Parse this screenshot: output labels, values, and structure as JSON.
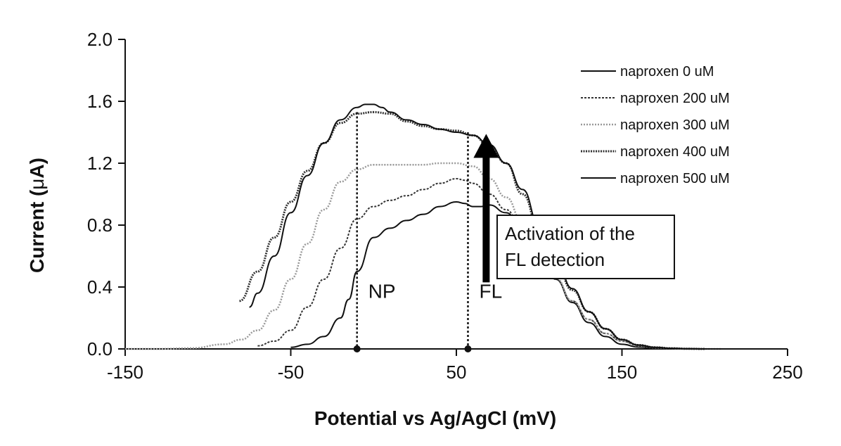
{
  "chart_data": {
    "type": "line",
    "title": "",
    "xlabel": "Potential vs Ag/AgCl (mV)",
    "ylabel_prefix": "Current (",
    "ylabel_mu": "μ",
    "ylabel_suffix": "A)",
    "xlim": [
      -150,
      250
    ],
    "ylim": [
      0,
      2.0
    ],
    "xticks": [
      -150,
      -50,
      50,
      150,
      250
    ],
    "xtick_labels": [
      "-150",
      "-50",
      "50",
      "150",
      "250"
    ],
    "yticks": [
      0,
      0.4,
      0.8,
      1.2,
      1.6,
      2.0
    ],
    "ytick_labels": [
      "0.0",
      "0.4",
      "0.8",
      "1.2",
      "1.6",
      "2.0"
    ],
    "grid": false,
    "legend_position": "top-right",
    "series": [
      {
        "name": "naproxen 0 uM",
        "style": "solid",
        "color": "#111111",
        "x": [
          -50,
          -40,
          -30,
          -20,
          -15,
          -10,
          0,
          10,
          20,
          30,
          40,
          50,
          55,
          60,
          65,
          70,
          80,
          90,
          100,
          110,
          120,
          130,
          140,
          150,
          160,
          170,
          180,
          190,
          200
        ],
        "y": [
          0.01,
          0.03,
          0.08,
          0.2,
          0.32,
          0.5,
          0.72,
          0.78,
          0.83,
          0.87,
          0.92,
          0.95,
          0.94,
          0.92,
          0.92,
          0.93,
          0.88,
          0.78,
          0.62,
          0.45,
          0.3,
          0.17,
          0.08,
          0.03,
          0.012,
          0.005,
          0.002,
          0.001,
          0.0
        ]
      },
      {
        "name": "naproxen 200 uM",
        "style": "dashed",
        "color": "#333333",
        "x": [
          -70,
          -60,
          -50,
          -40,
          -30,
          -20,
          -10,
          0,
          10,
          20,
          30,
          40,
          50,
          55,
          60,
          70,
          80,
          90,
          100,
          110,
          120,
          130,
          140,
          150,
          160,
          170,
          180,
          190,
          200
        ],
        "y": [
          0.02,
          0.05,
          0.12,
          0.27,
          0.45,
          0.65,
          0.84,
          0.92,
          0.96,
          0.99,
          1.03,
          1.07,
          1.1,
          1.09,
          1.07,
          1.0,
          0.9,
          0.77,
          0.61,
          0.45,
          0.31,
          0.19,
          0.1,
          0.05,
          0.02,
          0.008,
          0.003,
          0.001,
          0.0
        ]
      },
      {
        "name": "naproxen 300 uM",
        "style": "dotted-gray",
        "color": "#999999",
        "x": [
          -150,
          -130,
          -110,
          -90,
          -80,
          -70,
          -60,
          -50,
          -40,
          -30,
          -20,
          -10,
          0,
          10,
          20,
          30,
          40,
          50,
          60,
          70,
          80,
          90,
          100,
          110,
          120,
          130,
          140,
          150,
          160,
          170,
          180,
          190,
          200,
          210
        ],
        "y": [
          0.0,
          0.0,
          0.005,
          0.03,
          0.06,
          0.12,
          0.25,
          0.45,
          0.68,
          0.9,
          1.08,
          1.16,
          1.19,
          1.19,
          1.19,
          1.19,
          1.2,
          1.2,
          1.18,
          1.1,
          0.98,
          0.82,
          0.64,
          0.46,
          0.31,
          0.19,
          0.1,
          0.05,
          0.02,
          0.008,
          0.003,
          0.001,
          0.0,
          0.0
        ]
      },
      {
        "name": "naproxen 400 uM",
        "style": "dashed-double",
        "color": "#333333",
        "x": [
          -81,
          -70,
          -60,
          -50,
          -40,
          -30,
          -20,
          -10,
          0,
          10,
          20,
          30,
          40,
          50,
          60,
          70,
          80,
          90,
          100,
          110,
          120,
          130,
          140,
          150,
          160,
          170,
          180,
          190,
          200
        ],
        "y": [
          0.31,
          0.5,
          0.72,
          0.95,
          1.15,
          1.33,
          1.46,
          1.52,
          1.53,
          1.52,
          1.47,
          1.44,
          1.42,
          1.41,
          1.38,
          1.31,
          1.2,
          1.0,
          0.78,
          0.56,
          0.38,
          0.24,
          0.13,
          0.06,
          0.025,
          0.01,
          0.004,
          0.001,
          0.0
        ]
      },
      {
        "name": "naproxen 500 uM",
        "style": "solid",
        "color": "#111111",
        "x": [
          -75,
          -70,
          -60,
          -50,
          -40,
          -30,
          -20,
          -10,
          -5,
          0,
          5,
          10,
          20,
          30,
          40,
          50,
          60,
          70,
          80,
          90,
          100,
          110,
          120,
          130,
          140,
          150,
          160,
          170,
          180,
          190,
          200,
          210
        ],
        "y": [
          0.27,
          0.36,
          0.6,
          0.88,
          1.12,
          1.33,
          1.48,
          1.56,
          1.58,
          1.58,
          1.56,
          1.53,
          1.48,
          1.45,
          1.42,
          1.4,
          1.38,
          1.32,
          1.2,
          1.03,
          0.8,
          0.58,
          0.39,
          0.24,
          0.13,
          0.06,
          0.025,
          0.01,
          0.004,
          0.001,
          0.0,
          0.0
        ]
      }
    ],
    "markers": [
      {
        "label": "NP",
        "x": -10,
        "y_top": 1.53
      },
      {
        "label": "FL",
        "x": 57,
        "y_top": 1.4
      }
    ],
    "annotation": {
      "lines": [
        "Activation of the",
        "FL detection"
      ],
      "arrow_x": 68,
      "arrow_from_y": 0.43,
      "arrow_to_y": 1.38
    }
  }
}
